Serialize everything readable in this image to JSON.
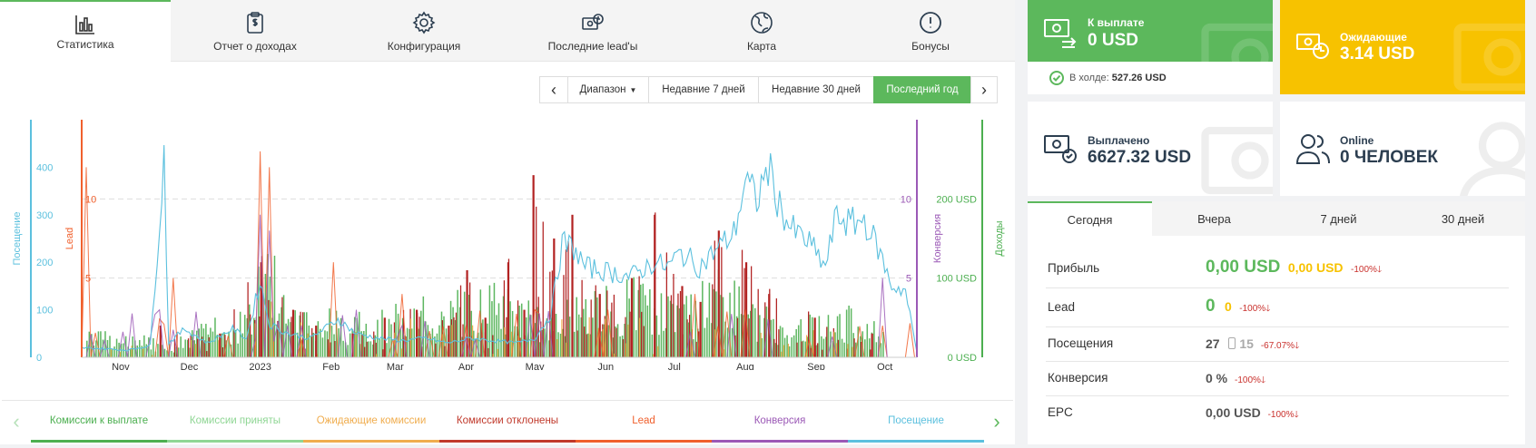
{
  "tabs": [
    {
      "label": "Статистика",
      "icon": "bar-chart-icon"
    },
    {
      "label": "Отчет о доходах",
      "icon": "clipboard-dollar-icon"
    },
    {
      "label": "Конфигурация",
      "icon": "gear-icon"
    },
    {
      "label": "Последние lead'ы",
      "icon": "money-clock-icon"
    },
    {
      "label": "Карта",
      "icon": "globe-icon"
    },
    {
      "label": "Бонусы",
      "icon": "alert-circle-icon"
    }
  ],
  "range": {
    "prev": "‹",
    "next": "›",
    "dropdown": "Диапазон",
    "buttons": [
      "Недавние 7 дней",
      "Недавние 30 дней",
      "Последний год"
    ],
    "active": "Последний год"
  },
  "chart_data": {
    "type": "line",
    "axes": {
      "left_outer": {
        "title": "Посещение",
        "ticks": [
          "0",
          "100",
          "200",
          "300",
          "400"
        ],
        "color": "#5bc0de",
        "range": [
          0,
          500
        ]
      },
      "left_inner": {
        "title": "Lead",
        "ticks": [
          "5",
          "10"
        ],
        "color": "#f0602d",
        "range": [
          0,
          15
        ]
      },
      "right_inner": {
        "title": "Конверсия",
        "ticks": [
          "5",
          "10"
        ],
        "color": "#9b59b6",
        "range": [
          0,
          15
        ]
      },
      "right_outer": {
        "title": "Доходы",
        "ticks": [
          "0 USD",
          "100 USD",
          "200 USD"
        ],
        "color": "#4caf50",
        "range": [
          0,
          300
        ]
      }
    },
    "x_labels": [
      "Nov",
      "Dec",
      "2023",
      "Feb",
      "Mar",
      "Apr",
      "May",
      "Jun",
      "Jul",
      "Aug",
      "Sep",
      "Oct"
    ],
    "x_range_days": [
      0,
      365
    ],
    "x_label_days": [
      17,
      47,
      78,
      109,
      137,
      168,
      198,
      229,
      259,
      290,
      321,
      351
    ],
    "visits": [
      [
        0,
        20
      ],
      [
        10,
        18
      ],
      [
        20,
        15
      ],
      [
        30,
        25
      ],
      [
        36,
        420
      ],
      [
        38,
        30
      ],
      [
        45,
        60
      ],
      [
        55,
        30
      ],
      [
        66,
        60
      ],
      [
        72,
        40
      ],
      [
        78,
        160
      ],
      [
        82,
        70
      ],
      [
        90,
        50
      ],
      [
        100,
        40
      ],
      [
        112,
        80
      ],
      [
        120,
        50
      ],
      [
        130,
        40
      ],
      [
        140,
        35
      ],
      [
        150,
        40
      ],
      [
        160,
        30
      ],
      [
        170,
        40
      ],
      [
        180,
        35
      ],
      [
        190,
        30
      ],
      [
        198,
        40
      ],
      [
        205,
        90
      ],
      [
        210,
        240
      ],
      [
        215,
        230
      ],
      [
        220,
        190
      ],
      [
        230,
        180
      ],
      [
        240,
        170
      ],
      [
        250,
        200
      ],
      [
        256,
        190
      ],
      [
        262,
        220
      ],
      [
        270,
        190
      ],
      [
        278,
        230
      ],
      [
        285,
        260
      ],
      [
        290,
        370
      ],
      [
        295,
        330
      ],
      [
        300,
        400
      ],
      [
        305,
        320
      ],
      [
        310,
        270
      ],
      [
        318,
        240
      ],
      [
        325,
        190
      ],
      [
        330,
        300
      ],
      [
        336,
        280
      ],
      [
        342,
        290
      ],
      [
        348,
        230
      ],
      [
        354,
        150
      ],
      [
        360,
        140
      ],
      [
        365,
        10
      ]
    ],
    "earnings_peaks": [
      [
        2,
        30
      ],
      [
        20,
        25
      ],
      [
        40,
        20
      ],
      [
        55,
        40
      ],
      [
        75,
        60
      ],
      [
        78,
        140
      ],
      [
        82,
        120
      ],
      [
        100,
        60
      ],
      [
        120,
        50
      ],
      [
        140,
        60
      ],
      [
        160,
        70
      ],
      [
        180,
        80
      ],
      [
        198,
        60
      ],
      [
        220,
        70
      ],
      [
        240,
        90
      ],
      [
        260,
        60
      ],
      [
        280,
        100
      ],
      [
        290,
        70
      ],
      [
        310,
        40
      ],
      [
        330,
        60
      ],
      [
        350,
        40
      ]
    ],
    "rejected_peaks": [
      [
        34,
        40
      ],
      [
        60,
        30
      ],
      [
        78,
        120
      ],
      [
        92,
        60
      ],
      [
        102,
        40
      ],
      [
        118,
        30
      ],
      [
        132,
        50
      ],
      [
        146,
        60
      ],
      [
        160,
        40
      ],
      [
        168,
        110
      ],
      [
        176,
        50
      ],
      [
        186,
        120
      ],
      [
        193,
        60
      ],
      [
        197,
        230
      ],
      [
        206,
        150
      ],
      [
        214,
        180
      ],
      [
        226,
        80
      ],
      [
        240,
        100
      ],
      [
        250,
        180
      ],
      [
        262,
        90
      ],
      [
        270,
        70
      ],
      [
        278,
        160
      ],
      [
        290,
        120
      ],
      [
        300,
        80
      ],
      [
        320,
        50
      ],
      [
        345,
        30
      ]
    ],
    "lead_peaks": [
      [
        2,
        12
      ],
      [
        40,
        5
      ],
      [
        78,
        13
      ],
      [
        82,
        12
      ],
      [
        110,
        6
      ],
      [
        140,
        4
      ],
      [
        198,
        3
      ],
      [
        230,
        3
      ],
      [
        268,
        4
      ],
      [
        290,
        3
      ],
      [
        350,
        2
      ]
    ],
    "conversion_peaks": [
      [
        34,
        3
      ],
      [
        78,
        9
      ],
      [
        82,
        8
      ],
      [
        120,
        3
      ],
      [
        140,
        2
      ],
      [
        350,
        5
      ]
    ]
  },
  "legend": {
    "left_arrow": "‹",
    "right_arrow": "›",
    "items": [
      {
        "label": "Комиссии к выплате",
        "color": "#4caf50"
      },
      {
        "label": "Комиссии приняты",
        "color": "#8fd694"
      },
      {
        "label": "Ожидающие комиссии",
        "color": "#f0ad4e"
      },
      {
        "label": "Комиссии отклонены",
        "color": "#c0392b"
      },
      {
        "label": "Lead",
        "color": "#f0602d"
      },
      {
        "label": "Конверсия",
        "color": "#9b59b6"
      },
      {
        "label": "Посещение",
        "color": "#5bc0de"
      }
    ]
  },
  "cards": {
    "payout": {
      "title": "К выплате",
      "value": "0 USD",
      "hold_label": "В холде:",
      "hold_value": "527.26 USD",
      "color": "#5cb85c"
    },
    "pending": {
      "title": "Ожидающие",
      "value": "3.14 USD",
      "color": "#f7c200"
    },
    "paid": {
      "title": "Выплачено",
      "value": "6627.32 USD"
    },
    "online": {
      "title": "Online",
      "value": "0 ЧЕЛОВЕК"
    }
  },
  "stats": {
    "tabs": [
      "Сегодня",
      "Вчера",
      "7 дней",
      "30 дней"
    ],
    "active": "Сегодня",
    "rows": [
      {
        "label": "Прибыль",
        "value": "0,00 USD",
        "value2": "0,00 USD",
        "change": "-100%"
      },
      {
        "label": "Lead",
        "value": "0",
        "value2": "0",
        "change": "-100%"
      },
      {
        "label": "Посещения",
        "value": "27",
        "mobile": "15",
        "change": "-67.07%"
      },
      {
        "label": "Конверсия",
        "value": "0 %",
        "change": "-100%"
      },
      {
        "label": "EPC",
        "value": "0,00 USD",
        "change": "-100%"
      }
    ]
  }
}
